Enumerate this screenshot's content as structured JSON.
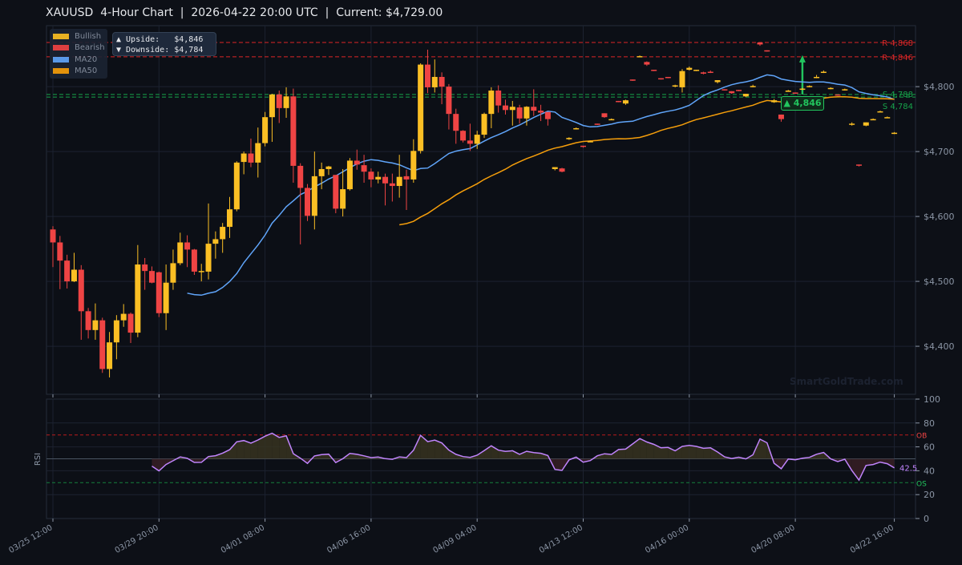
{
  "header": {
    "title": "XAUUSD  4-Hour Chart  |  2026-04-22 20:00 UTC  |  Current: $4,729.00"
  },
  "legend": {
    "items": [
      {
        "label": "Bullish",
        "color": "#fbbf24"
      },
      {
        "label": "Bearish",
        "color": "#ef4444"
      },
      {
        "label": "MA20",
        "color": "#60a5fa"
      },
      {
        "label": "MA50",
        "color": "#f59e0b"
      }
    ]
  },
  "targets_box": {
    "upside": "▲ Upside:   $4,846",
    "downside": "▼ Downside: $4,784"
  },
  "annotation": {
    "label": "▲ 4,846",
    "color": "#22c55e"
  },
  "watermark": "SmartGoldTrade.com",
  "chart_data": [
    {
      "type": "candlestick",
      "title": "XAUUSD 4-Hour Chart",
      "ylabel": "",
      "ylim": [
        4326,
        4894
      ],
      "yticks": [
        {
          "v": 4400,
          "label": "$4,400"
        },
        {
          "v": 4500,
          "label": "$4,500"
        },
        {
          "v": 4600,
          "label": "$4,600"
        },
        {
          "v": 4700,
          "label": "$4,700"
        },
        {
          "v": 4800,
          "label": "$4,800"
        }
      ],
      "xticks": [
        {
          "i": 0,
          "label": "03/25 12:00"
        },
        {
          "i": 15,
          "label": "03/29 20:00"
        },
        {
          "i": 30,
          "label": "04/01 08:00"
        },
        {
          "i": 45,
          "label": "04/06 16:00"
        },
        {
          "i": 60,
          "label": "04/09 04:00"
        },
        {
          "i": 75,
          "label": "04/13 12:00"
        },
        {
          "i": 90,
          "label": "04/16 00:00"
        },
        {
          "i": 105,
          "label": "04/20 08:00"
        },
        {
          "i": 119,
          "label": "04/22 16:00"
        }
      ],
      "ohlc": [
        [
          4580,
          4585,
          4522,
          4560
        ],
        [
          4560,
          4570,
          4488,
          4532
        ],
        [
          4532,
          4541,
          4489,
          4500
        ],
        [
          4500,
          4544,
          4499,
          4518
        ],
        [
          4518,
          4525,
          4410,
          4454
        ],
        [
          4454,
          4459,
          4412,
          4425
        ],
        [
          4425,
          4466,
          4410,
          4440
        ],
        [
          4440,
          4444,
          4359,
          4365
        ],
        [
          4365,
          4422,
          4352,
          4406
        ],
        [
          4406,
          4448,
          4380,
          4440
        ],
        [
          4440,
          4465,
          4430,
          4450
        ],
        [
          4450,
          4452,
          4405,
          4421
        ],
        [
          4421,
          4556,
          4414,
          4526
        ],
        [
          4526,
          4536,
          4487,
          4516
        ],
        [
          4516,
          4523,
          4497,
          4498
        ],
        [
          4514,
          4515,
          4445,
          4451
        ],
        [
          4451,
          4526,
          4425,
          4498
        ],
        [
          4498,
          4549,
          4487,
          4528
        ],
        [
          4528,
          4575,
          4525,
          4560
        ],
        [
          4560,
          4571,
          4522,
          4549
        ],
        [
          4549,
          4550,
          4510,
          4515
        ],
        [
          4515,
          4527,
          4500,
          4516
        ],
        [
          4515,
          4620,
          4503,
          4558
        ],
        [
          4558,
          4577,
          4535,
          4565
        ],
        [
          4565,
          4590,
          4544,
          4584
        ],
        [
          4584,
          4630,
          4567,
          4611
        ],
        [
          4611,
          4685,
          4608,
          4683
        ],
        [
          4684,
          4700,
          4665,
          4697
        ],
        [
          4697,
          4720,
          4676,
          4683
        ],
        [
          4683,
          4737,
          4660,
          4713
        ],
        [
          4713,
          4761,
          4708,
          4753
        ],
        [
          4753,
          4789,
          4715,
          4788
        ],
        [
          4788,
          4794,
          4744,
          4767
        ],
        [
          4767,
          4799,
          4752,
          4785
        ],
        [
          4785,
          4797,
          4652,
          4678
        ],
        [
          4678,
          4682,
          4557,
          4644
        ],
        [
          4644,
          4650,
          4593,
          4601
        ],
        [
          4601,
          4700,
          4580,
          4662
        ],
        [
          4662,
          4683,
          4642,
          4673
        ],
        [
          4673,
          4678,
          4664,
          4677
        ],
        [
          4664,
          4664,
          4605,
          4612
        ],
        [
          4612,
          4673,
          4600,
          4642
        ],
        [
          4642,
          4690,
          4640,
          4686
        ],
        [
          4686,
          4703,
          4672,
          4680
        ],
        [
          4679,
          4695,
          4652,
          4669
        ],
        [
          4669,
          4674,
          4645,
          4657
        ],
        [
          4657,
          4669,
          4651,
          4661
        ],
        [
          4661,
          4666,
          4617,
          4651
        ],
        [
          4651,
          4666,
          4623,
          4647
        ],
        [
          4647,
          4695,
          4629,
          4661
        ],
        [
          4662,
          4672,
          4610,
          4657
        ],
        [
          4657,
          4719,
          4652,
          4701
        ],
        [
          4701,
          4836,
          4697,
          4834
        ],
        [
          4834,
          4857,
          4790,
          4799
        ],
        [
          4799,
          4842,
          4791,
          4815
        ],
        [
          4815,
          4822,
          4773,
          4800
        ],
        [
          4800,
          4804,
          4734,
          4758
        ],
        [
          4758,
          4766,
          4712,
          4732
        ],
        [
          4732,
          4733,
          4714,
          4717
        ],
        [
          4717,
          4743,
          4701,
          4712
        ],
        [
          4712,
          4732,
          4704,
          4726
        ],
        [
          4726,
          4760,
          4721,
          4758
        ],
        [
          4758,
          4799,
          4736,
          4794
        ],
        [
          4794,
          4802,
          4760,
          4771
        ],
        [
          4771,
          4780,
          4757,
          4764
        ],
        [
          4764,
          4778,
          4740,
          4769
        ],
        [
          4768,
          4772,
          4743,
          4751
        ],
        [
          4751,
          4770,
          4740,
          4769
        ],
        [
          4769,
          4796,
          4755,
          4763
        ],
        [
          4763,
          4772,
          4747,
          4760
        ],
        [
          4761,
          4761,
          4740,
          4750
        ],
        [
          4673,
          4676,
          4671,
          4676
        ],
        [
          4674,
          4675,
          4668,
          4669
        ],
        [
          4719,
          4722,
          4718,
          4721
        ],
        [
          4735,
          4737,
          4734,
          4736
        ],
        [
          4709,
          4709,
          4706,
          4708
        ],
        [
          4715,
          4717,
          4715,
          4716
        ],
        [
          4743,
          4743,
          4741,
          4742
        ],
        [
          4759,
          4759,
          4752,
          4753
        ],
        [
          4750,
          4751,
          4749,
          4750
        ],
        [
          4778,
          4778,
          4776,
          4777
        ],
        [
          4774,
          4780,
          4772,
          4779
        ],
        [
          4811,
          4811,
          4809,
          4810
        ],
        [
          4847,
          4848,
          4846,
          4847
        ],
        [
          4838,
          4839,
          4832,
          4834
        ],
        [
          4826,
          4826,
          4824,
          4825
        ],
        [
          4813,
          4813,
          4811,
          4812
        ],
        [
          4815,
          4815,
          4813,
          4814
        ],
        [
          4801,
          4803,
          4799,
          4802
        ],
        [
          4799,
          4827,
          4791,
          4824
        ],
        [
          4826,
          4831,
          4825,
          4829
        ],
        [
          4825,
          4826,
          4824,
          4826
        ],
        [
          4822,
          4823,
          4819,
          4820
        ],
        [
          4823,
          4825,
          4821,
          4822
        ],
        [
          4807,
          4810,
          4805,
          4810
        ],
        [
          4796,
          4796,
          4794,
          4795
        ],
        [
          4793,
          4793,
          4789,
          4790
        ],
        [
          4795,
          4795,
          4793,
          4794
        ],
        [
          4785,
          4789,
          4784,
          4789
        ],
        [
          4800,
          4803,
          4799,
          4801
        ],
        [
          4868,
          4868,
          4863,
          4865
        ],
        [
          4856,
          4856,
          4854,
          4855
        ],
        [
          4776,
          4781,
          4775,
          4779
        ],
        [
          4757,
          4757,
          4746,
          4750
        ],
        [
          4792,
          4795,
          4792,
          4794
        ],
        [
          4791,
          4791,
          4789,
          4790
        ],
        [
          4796,
          4798,
          4795,
          4797
        ],
        [
          4800,
          4802,
          4799,
          4801
        ],
        [
          4814,
          4818,
          4813,
          4815
        ],
        [
          4822,
          4825,
          4821,
          4823
        ],
        [
          4797,
          4799,
          4796,
          4798
        ],
        [
          4788,
          4788,
          4786,
          4787
        ],
        [
          4795,
          4797,
          4794,
          4796
        ],
        [
          4742,
          4745,
          4740,
          4743
        ],
        [
          4680,
          4680,
          4677,
          4679
        ],
        [
          4740,
          4745,
          4739,
          4745
        ],
        [
          4750,
          4751,
          4749,
          4750
        ],
        [
          4761,
          4763,
          4761,
          4762
        ],
        [
          4752,
          4754,
          4752,
          4753
        ],
        [
          4728,
          4730,
          4727,
          4729
        ]
      ],
      "ma_periods": [
        20,
        50
      ],
      "levels": [
        {
          "value": 4868,
          "label": "R 4,868",
          "color": "#dc2626"
        },
        {
          "value": 4846,
          "label": "R 4,846",
          "color": "#dc2626"
        },
        {
          "value": 4788,
          "label": "S 4,788",
          "color": "#16a34a"
        },
        {
          "value": 4784,
          "label": "S 4,784",
          "color": "#16a34a"
        }
      ],
      "target": {
        "index": 106,
        "from": 4788,
        "to": 4846
      }
    },
    {
      "type": "line",
      "title": "RSI",
      "ylabel": "RSI",
      "period": 14,
      "ylim": [
        0,
        100
      ],
      "yticks": [
        {
          "v": 0,
          "label": "0"
        },
        {
          "v": 20,
          "label": "20"
        },
        {
          "v": 40,
          "label": "40"
        },
        {
          "v": 60,
          "label": "60"
        },
        {
          "v": 80,
          "label": "80"
        },
        {
          "v": 100,
          "label": "100"
        }
      ],
      "overbought": {
        "value": 70,
        "label": "OB"
      },
      "oversold": {
        "value": 30,
        "label": "OS"
      },
      "last_label": "42.5"
    }
  ]
}
